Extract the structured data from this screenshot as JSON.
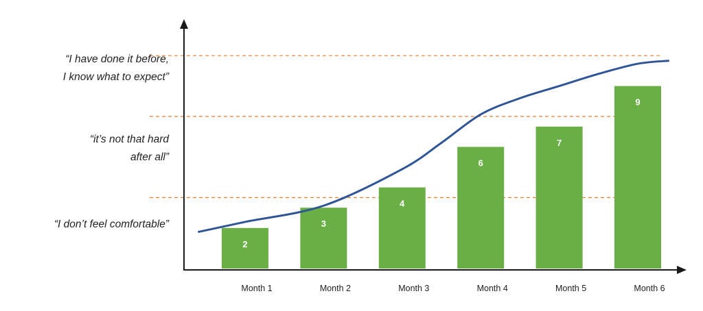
{
  "chart_data": {
    "type": "bar",
    "categories": [
      "Month 1",
      "Month 2",
      "Month 3",
      "Month 4",
      "Month 5",
      "Month 6"
    ],
    "values": [
      2,
      3,
      4,
      6,
      7,
      9
    ],
    "title": "",
    "xlabel": "",
    "ylabel": "",
    "ylim": [
      0,
      10.5
    ],
    "grid": false,
    "legend": "none",
    "bar_color": "#6aaf46",
    "curve": {
      "color": "#2f5597",
      "x": [
        -0.6,
        0,
        1,
        2,
        2.5,
        3,
        3.5,
        4,
        4.5,
        5,
        5.4
      ],
      "y": [
        1.8,
        2.3,
        3.1,
        4.9,
        6.2,
        7.6,
        8.4,
        9.0,
        9.6,
        10.1,
        10.25
      ]
    },
    "reference_lines": {
      "color": "#ed7d31",
      "style": "dashed",
      "values": [
        3.5,
        7.5,
        10.5
      ]
    },
    "zone_labels": [
      {
        "lines": [
          "“I don’t feel comfortable”"
        ],
        "y": 2.2
      },
      {
        "lines": [
          "“it’s not that hard",
          "after all”"
        ],
        "y": 5.95
      },
      {
        "lines": [
          "“I have done it before,",
          "I know what to expect”"
        ],
        "y": 9.9
      }
    ]
  }
}
